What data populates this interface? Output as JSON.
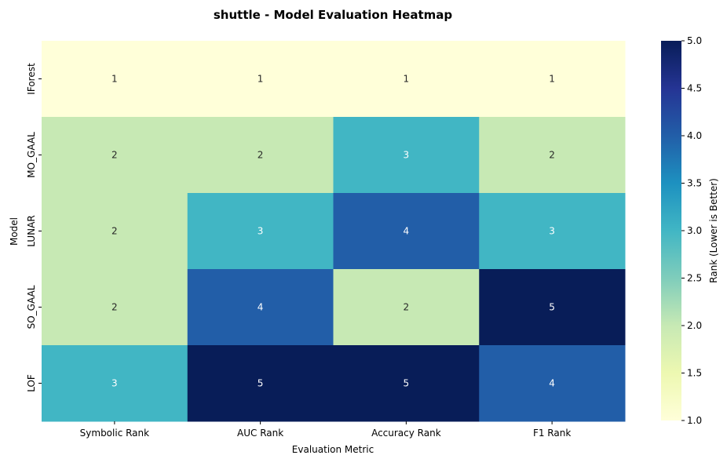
{
  "chart_data": {
    "type": "heatmap",
    "title": "shuttle - Model Evaluation Heatmap",
    "xlabel": "Evaluation Metric",
    "ylabel": "Model",
    "columns": [
      "Symbolic Rank",
      "AUC Rank",
      "Accuracy Rank",
      "F1 Rank"
    ],
    "rows": [
      "IForest",
      "MO_GAAL",
      "LUNAR",
      "SO_GAAL",
      "LOF"
    ],
    "values": [
      [
        1,
        1,
        1,
        1
      ],
      [
        2,
        2,
        3,
        2
      ],
      [
        2,
        3,
        4,
        3
      ],
      [
        2,
        4,
        2,
        5
      ],
      [
        3,
        5,
        5,
        4
      ]
    ],
    "colormap": "YlGnBu",
    "colorbar": {
      "label": "Rank (Lower is Better)",
      "range": [
        1.0,
        5.0
      ],
      "ticks": [
        "1.0",
        "1.5",
        "2.0",
        "2.5",
        "3.0",
        "3.5",
        "4.0",
        "4.5",
        "5.0"
      ]
    }
  }
}
